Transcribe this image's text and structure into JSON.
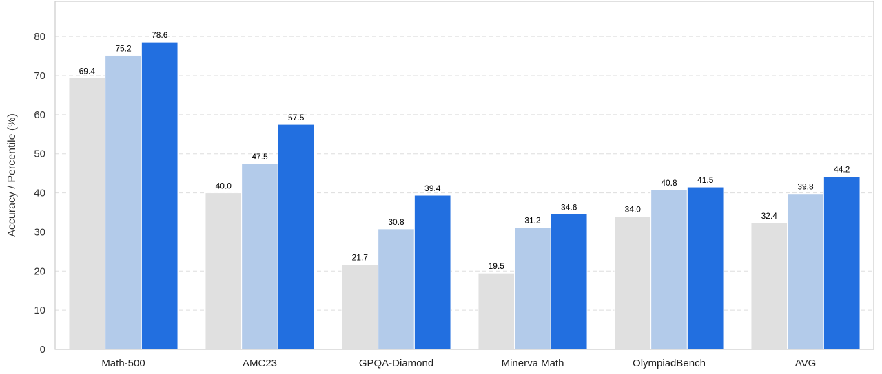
{
  "chart_data": {
    "type": "bar",
    "categories": [
      "Math-500",
      "AMC23",
      "GPQA-Diamond",
      "Minerva Math",
      "OlympiadBench",
      "AVG"
    ],
    "series": [
      {
        "values": [
          69.4,
          40.0,
          21.7,
          19.5,
          34.0,
          32.4
        ],
        "color": "#e0e0e0"
      },
      {
        "values": [
          75.2,
          47.5,
          30.8,
          31.2,
          40.8,
          39.8
        ],
        "color": "#b3cbea"
      },
      {
        "values": [
          78.6,
          57.5,
          39.4,
          34.6,
          41.5,
          44.2
        ],
        "color": "#226fe0"
      }
    ],
    "ylabel": "Accuracy / Percentile (%)",
    "ylim": [
      0,
      89
    ],
    "yticks": [
      0,
      10,
      20,
      30,
      40,
      50,
      60,
      70,
      80
    ],
    "grid": true,
    "legend": false
  }
}
